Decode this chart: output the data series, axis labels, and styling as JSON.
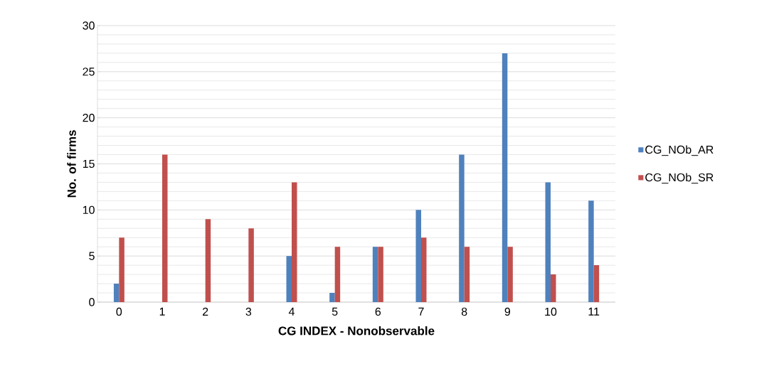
{
  "chart_data": {
    "type": "bar",
    "xlabel": "CG INDEX - Nonobservable",
    "ylabel": "No. of firms",
    "categories": [
      "0",
      "1",
      "2",
      "3",
      "4",
      "5",
      "6",
      "7",
      "8",
      "9",
      "10",
      "11"
    ],
    "series": [
      {
        "name": "CG_NOb_AR",
        "color": "#4f81bd",
        "values": [
          2,
          0,
          0,
          0,
          5,
          1,
          6,
          10,
          16,
          27,
          13,
          11
        ]
      },
      {
        "name": "CG_NOb_SR",
        "color": "#c0504d",
        "values": [
          7,
          16,
          9,
          8,
          13,
          6,
          6,
          7,
          6,
          6,
          3,
          4
        ]
      }
    ],
    "ylim": [
      0,
      30
    ],
    "yticks": [
      0,
      5,
      10,
      15,
      20,
      25,
      30
    ],
    "grid": "y",
    "legend": "right"
  }
}
